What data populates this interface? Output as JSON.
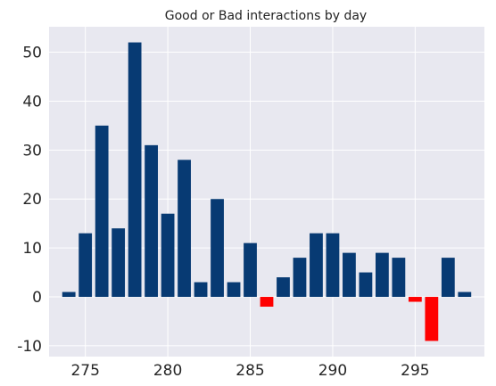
{
  "chart_data": {
    "type": "bar",
    "title": "Good or Bad interactions by day",
    "xlabel": "",
    "ylabel": "",
    "x": [
      274,
      275,
      276,
      277,
      278,
      279,
      280,
      281,
      282,
      283,
      284,
      285,
      286,
      287,
      288,
      289,
      290,
      291,
      292,
      293,
      294,
      295,
      296,
      297,
      298
    ],
    "values": [
      1,
      13,
      35,
      14,
      52,
      31,
      17,
      28,
      3,
      20,
      3,
      11,
      -2,
      4,
      8,
      13,
      13,
      9,
      5,
      9,
      8,
      -1,
      -9,
      8,
      1
    ],
    "xlim": [
      272.8,
      299.2
    ],
    "ylim": [
      -12.2,
      55.2
    ],
    "xticks": [
      275,
      280,
      285,
      290,
      295
    ],
    "yticks": [
      -10,
      0,
      10,
      20,
      30,
      40,
      50
    ],
    "grid": true,
    "colors": {
      "positive": "#073a73",
      "negative": "#ff0000",
      "plot_background": "#e8e8f0",
      "grid": "#ffffff"
    }
  }
}
